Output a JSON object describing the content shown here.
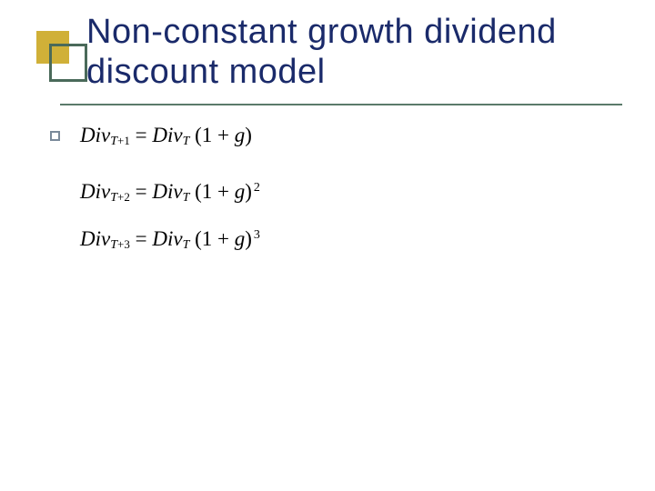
{
  "slide": {
    "title_line1": "Non-constant growth dividend",
    "title_line2": "discount model",
    "colors": {
      "title_text": "#1a2a6a",
      "gold_box": "#d0b038",
      "green_frame": "#4a6a5a",
      "underline": "#5a7a6a",
      "bullet_border": "#7a8a9a",
      "equation_text": "#000000",
      "background": "#ffffff"
    },
    "equations": [
      {
        "lhs_base": "Div",
        "lhs_sub": "T",
        "lhs_sub_offset": "+1",
        "rhs_base": "Div",
        "rhs_sub": "T",
        "factor": "(1 + g)",
        "exponent": ""
      },
      {
        "lhs_base": "Div",
        "lhs_sub": "T",
        "lhs_sub_offset": "+2",
        "rhs_base": "Div",
        "rhs_sub": "T",
        "factor": "(1 + g)",
        "exponent": "2"
      },
      {
        "lhs_base": "Div",
        "lhs_sub": "T",
        "lhs_sub_offset": "+3",
        "rhs_base": "Div",
        "rhs_sub": "T",
        "factor": "(1 + g)",
        "exponent": "3"
      }
    ]
  }
}
